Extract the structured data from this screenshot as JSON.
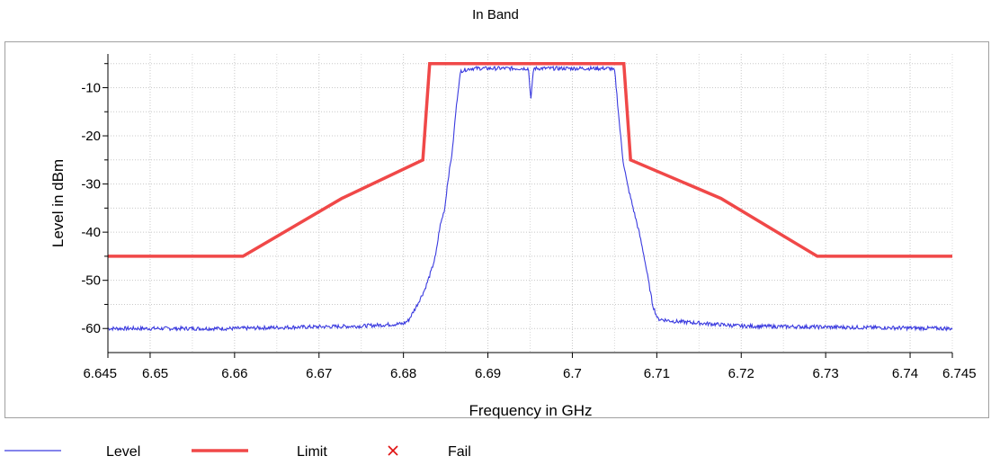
{
  "chart_data": {
    "type": "line",
    "title": "In Band",
    "xlabel": "Frequency in GHz",
    "ylabel": "Level in dBm",
    "xlim": [
      6.645,
      6.745
    ],
    "ylim": [
      -65,
      -3
    ],
    "x_ticks": [
      6.645,
      6.65,
      6.66,
      6.67,
      6.68,
      6.69,
      6.7,
      6.71,
      6.72,
      6.73,
      6.74,
      6.745
    ],
    "x_tick_labels": [
      "6.645",
      "6.65",
      "6.66",
      "6.67",
      "6.68",
      "6.69",
      "6.7",
      "6.71",
      "6.72",
      "6.73",
      "6.74",
      "6.745"
    ],
    "y_ticks": [
      -60,
      -50,
      -40,
      -30,
      -20,
      -10
    ],
    "y_tick_labels": [
      "-60",
      "-50",
      "-40",
      "-30",
      "-20",
      "-10"
    ],
    "grid": true,
    "legend_position": "bottom",
    "series": [
      {
        "name": "Level",
        "color": "#3a3adf",
        "noise": 0.4,
        "points": [
          [
            6.645,
            -60.0
          ],
          [
            6.66,
            -60.0
          ],
          [
            6.665,
            -59.8
          ],
          [
            6.675,
            -59.5
          ],
          [
            6.68,
            -59.0
          ],
          [
            6.6806,
            -58.3
          ],
          [
            6.6815,
            -55.5
          ],
          [
            6.6825,
            -52.0
          ],
          [
            6.6833,
            -48.0
          ],
          [
            6.6838,
            -45.0
          ],
          [
            6.6843,
            -39.0
          ],
          [
            6.6849,
            -35.0
          ],
          [
            6.6852,
            -30.0
          ],
          [
            6.6858,
            -23.0
          ],
          [
            6.6862,
            -15.0
          ],
          [
            6.6865,
            -10.0
          ],
          [
            6.6868,
            -6.5
          ],
          [
            6.688,
            -6.0
          ],
          [
            6.6948,
            -6.0
          ],
          [
            6.6951,
            -12.5
          ],
          [
            6.6954,
            -6.0
          ],
          [
            6.7045,
            -6.0
          ],
          [
            6.705,
            -6.5
          ],
          [
            6.7052,
            -10.0
          ],
          [
            6.7056,
            -18.0
          ],
          [
            6.706,
            -25.0
          ],
          [
            6.7065,
            -30.0
          ],
          [
            6.7072,
            -35.0
          ],
          [
            6.7079,
            -40.0
          ],
          [
            6.7085,
            -45.0
          ],
          [
            6.709,
            -50.0
          ],
          [
            6.7095,
            -55.0
          ],
          [
            6.7101,
            -58.0
          ],
          [
            6.712,
            -58.5
          ],
          [
            6.72,
            -59.5
          ],
          [
            6.745,
            -60.0
          ]
        ]
      },
      {
        "name": "Limit",
        "color": "#f04848",
        "points": [
          [
            6.645,
            -45
          ],
          [
            6.661,
            -45
          ],
          [
            6.6727,
            -33
          ],
          [
            6.6823,
            -25
          ],
          [
            6.6831,
            -5
          ],
          [
            6.7061,
            -5
          ],
          [
            6.7069,
            -25
          ],
          [
            6.7176,
            -33
          ],
          [
            6.729,
            -45
          ],
          [
            6.745,
            -45
          ]
        ]
      },
      {
        "name": "Fail",
        "color": "#e01010",
        "marker": "x",
        "points": []
      }
    ]
  }
}
